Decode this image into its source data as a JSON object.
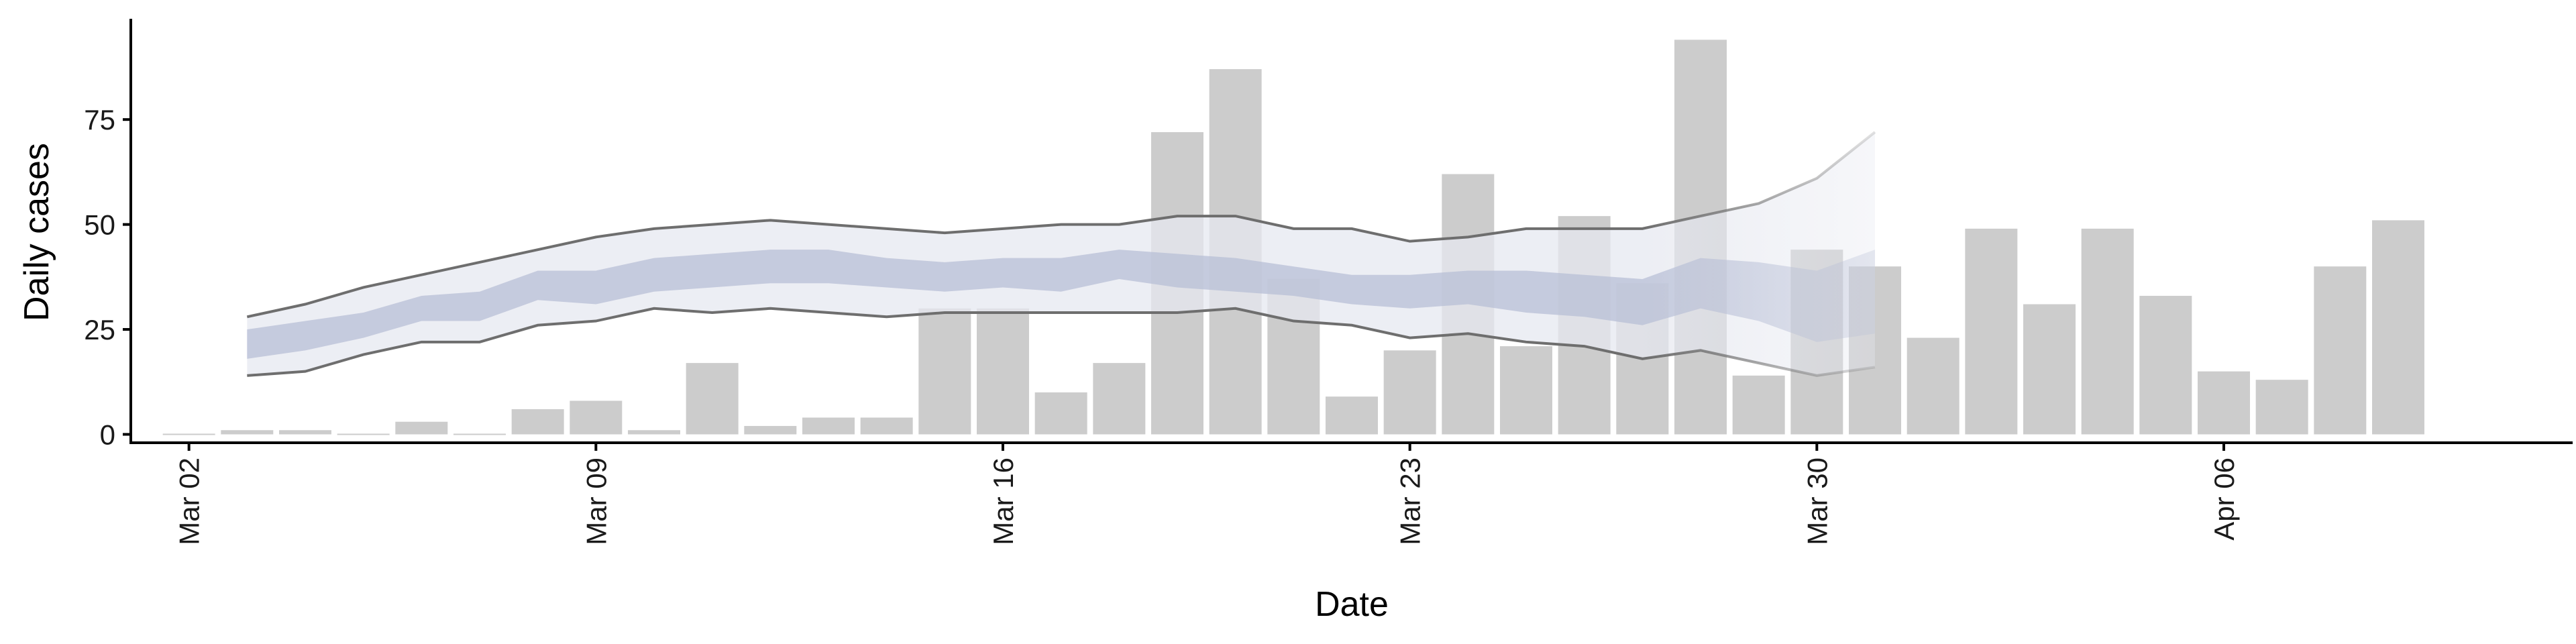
{
  "chart_data": {
    "type": "bar",
    "xlabel": "Date",
    "ylabel": "Daily cases",
    "xlim": [
      "2020-03-01",
      "2020-04-12"
    ],
    "ylim": [
      -2,
      99
    ],
    "x_ticks": [
      "Mar 02",
      "Mar 09",
      "Mar 16",
      "Mar 23",
      "Mar 30",
      "Apr 06"
    ],
    "y_ticks": [
      0,
      25,
      50,
      75
    ],
    "grid": false,
    "legend": "none",
    "bars": {
      "name": "",
      "color": "#cccccc",
      "points": [
        {
          "date": "2020-03-02",
          "value": 0
        },
        {
          "date": "2020-03-03",
          "value": 1
        },
        {
          "date": "2020-03-04",
          "value": 1
        },
        {
          "date": "2020-03-05",
          "value": 0
        },
        {
          "date": "2020-03-06",
          "value": 3
        },
        {
          "date": "2020-03-07",
          "value": 0
        },
        {
          "date": "2020-03-08",
          "value": 6
        },
        {
          "date": "2020-03-09",
          "value": 8
        },
        {
          "date": "2020-03-10",
          "value": 1
        },
        {
          "date": "2020-03-11",
          "value": 17
        },
        {
          "date": "2020-03-12",
          "value": 2
        },
        {
          "date": "2020-03-13",
          "value": 4
        },
        {
          "date": "2020-03-14",
          "value": 4
        },
        {
          "date": "2020-03-15",
          "value": 30
        },
        {
          "date": "2020-03-16",
          "value": 30
        },
        {
          "date": "2020-03-17",
          "value": 10
        },
        {
          "date": "2020-03-18",
          "value": 17
        },
        {
          "date": "2020-03-19",
          "value": 72
        },
        {
          "date": "2020-03-20",
          "value": 87
        },
        {
          "date": "2020-03-21",
          "value": 37
        },
        {
          "date": "2020-03-22",
          "value": 9
        },
        {
          "date": "2020-03-23",
          "value": 20
        },
        {
          "date": "2020-03-24",
          "value": 62
        },
        {
          "date": "2020-03-25",
          "value": 21
        },
        {
          "date": "2020-03-26",
          "value": 52
        },
        {
          "date": "2020-03-27",
          "value": 36
        },
        {
          "date": "2020-03-28",
          "value": 94
        },
        {
          "date": "2020-03-29",
          "value": 14
        },
        {
          "date": "2020-03-30",
          "value": 44
        },
        {
          "date": "2020-03-31",
          "value": 40
        },
        {
          "date": "2020-04-01",
          "value": 23
        },
        {
          "date": "2020-04-02",
          "value": 49
        },
        {
          "date": "2020-04-03",
          "value": 31
        },
        {
          "date": "2020-04-04",
          "value": 49
        },
        {
          "date": "2020-04-05",
          "value": 33
        },
        {
          "date": "2020-04-06",
          "value": 15
        },
        {
          "date": "2020-04-07",
          "value": 13
        },
        {
          "date": "2020-04-08",
          "value": 40
        },
        {
          "date": "2020-04-09",
          "value": 51
        }
      ]
    },
    "bands": {
      "dates": [
        "2020-03-03",
        "2020-03-04",
        "2020-03-05",
        "2020-03-06",
        "2020-03-07",
        "2020-03-08",
        "2020-03-09",
        "2020-03-10",
        "2020-03-11",
        "2020-03-12",
        "2020-03-13",
        "2020-03-14",
        "2020-03-15",
        "2020-03-16",
        "2020-03-17",
        "2020-03-18",
        "2020-03-19",
        "2020-03-20",
        "2020-03-21",
        "2020-03-22",
        "2020-03-23",
        "2020-03-24",
        "2020-03-25",
        "2020-03-26",
        "2020-03-27",
        "2020-03-28",
        "2020-03-29",
        "2020-03-30",
        "2020-03-31"
      ],
      "outer_upper": [
        28,
        31,
        35,
        38,
        41,
        44,
        47,
        49,
        50,
        51,
        50,
        49,
        48,
        49,
        50,
        50,
        52,
        52,
        49,
        49,
        46,
        47,
        49,
        49,
        49,
        52,
        55,
        61,
        72
      ],
      "outer_lower": [
        14,
        15,
        19,
        22,
        22,
        26,
        27,
        30,
        29,
        30,
        29,
        28,
        29,
        29,
        29,
        29,
        29,
        30,
        27,
        26,
        23,
        24,
        22,
        21,
        18,
        20,
        17,
        14,
        16
      ],
      "inner_upper": [
        25,
        27,
        29,
        33,
        34,
        39,
        39,
        42,
        43,
        44,
        44,
        42,
        41,
        42,
        42,
        44,
        43,
        42,
        40,
        38,
        38,
        39,
        39,
        38,
        37,
        42,
        41,
        39,
        44
      ],
      "inner_lower": [
        18,
        20,
        23,
        27,
        27,
        32,
        31,
        34,
        35,
        36,
        36,
        35,
        34,
        35,
        34,
        37,
        35,
        34,
        33,
        31,
        30,
        31,
        29,
        28,
        26,
        30,
        27,
        22,
        24
      ],
      "outer_color": "#e6e8f0",
      "inner_color": "#b8bfd6",
      "line_color": "#6e6e6e",
      "nowcast_from": "2020-03-27"
    }
  }
}
